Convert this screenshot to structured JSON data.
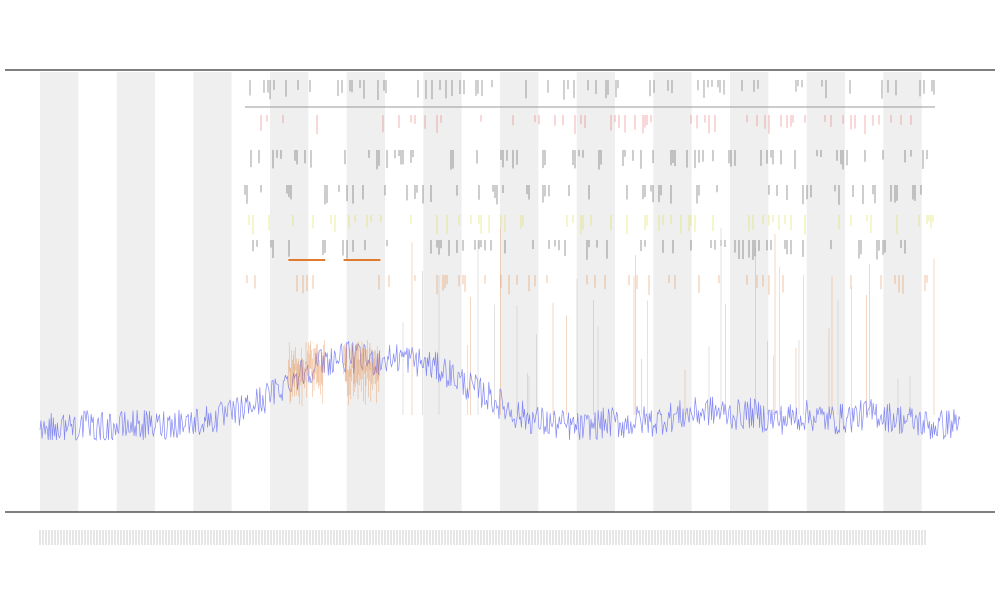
{
  "chart_data": {
    "type": "line",
    "title": "",
    "subtitle": "",
    "xlabel": "",
    "ylabel": "",
    "grid": false,
    "legend": "top-left",
    "bands": 12,
    "series": [
      {
        "color": "#6f74f2",
        "values": [
          0.06,
          0.05,
          0.06,
          0.07,
          0.05,
          0.06,
          0.06,
          0.07,
          0.06,
          0.07,
          0.08,
          0.08,
          0.09,
          0.1,
          0.12,
          0.15,
          0.18,
          0.22,
          0.27,
          0.31,
          0.34,
          0.36,
          0.37,
          0.36,
          0.35,
          0.36,
          0.37,
          0.35,
          0.33,
          0.31,
          0.27,
          0.23,
          0.2,
          0.16,
          0.12,
          0.1,
          0.08,
          0.07,
          0.06,
          0.05,
          0.07,
          0.08,
          0.07,
          0.09,
          0.08,
          0.1,
          0.11,
          0.12,
          0.13,
          0.12,
          0.11,
          0.12,
          0.1,
          0.09,
          0.1,
          0.11,
          0.1,
          0.09,
          0.1,
          0.11,
          0.12,
          0.1,
          0.09,
          0.08,
          0.06,
          0.07,
          0.08
        ]
      }
    ],
    "highlight_segments": [
      {
        "color": "#e07a2e",
        "from": 0.27,
        "to": 0.31
      },
      {
        "color": "#e07a2e",
        "from": 0.33,
        "to": 0.37
      }
    ],
    "event_rows": [
      {
        "color": "#333333",
        "density": 0.55
      },
      {
        "color": "#e05050",
        "density": 0.45
      },
      {
        "color": "#222222",
        "density": 0.6
      },
      {
        "color": "#222222",
        "density": 0.5
      },
      {
        "color": "#d8d820",
        "density": 0.5
      },
      {
        "color": "#222222",
        "density": 0.45
      },
      {
        "color": "#e07a2e",
        "density": 0.35
      }
    ]
  }
}
